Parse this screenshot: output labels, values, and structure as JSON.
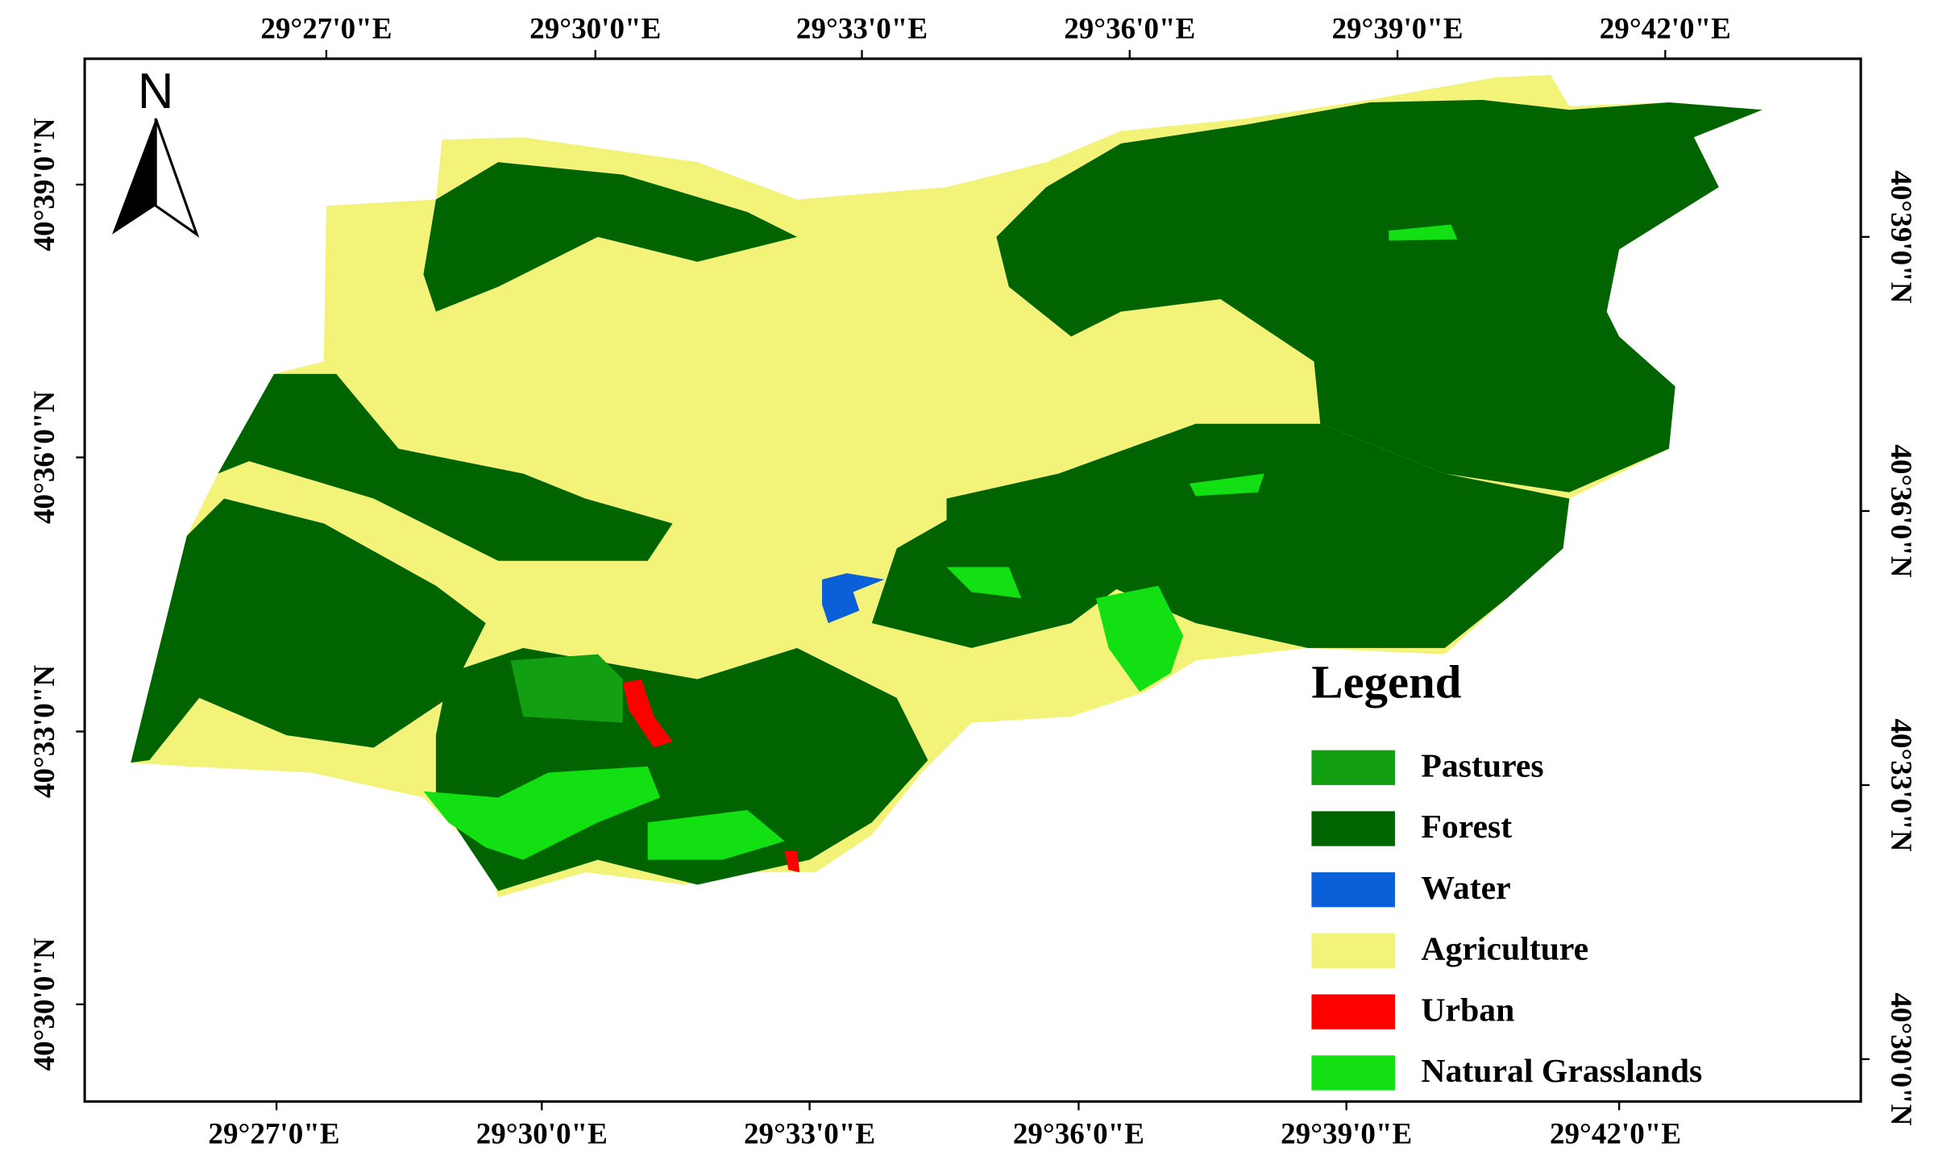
{
  "north": "N",
  "axes": {
    "top": [
      "29°27'0\"E",
      "29°30'0\"E",
      "29°33'0\"E",
      "29°36'0\"E",
      "29°39'0\"E",
      "29°42'0\"E"
    ],
    "bottom": [
      "29°27'0\"E",
      "29°30'0\"E",
      "29°33'0\"E",
      "29°36'0\"E",
      "29°39'0\"E",
      "29°42'0\"E"
    ],
    "left": [
      "40°39'0\"N",
      "40°36'0\"N",
      "40°33'0\"N",
      "40°30'0\"N"
    ],
    "right": [
      "40°39'0\"N",
      "40°36'0\"N",
      "40°33'0\"N",
      "40°30'0\"N"
    ]
  },
  "legend": {
    "title": "Legend",
    "items": [
      {
        "label": "Pastures",
        "color": "#12a012"
      },
      {
        "label": "Forest",
        "color": "#006400"
      },
      {
        "label": "Water",
        "color": "#0b5fd9"
      },
      {
        "label": "Agriculture",
        "color": "#f3f279"
      },
      {
        "label": "Urban",
        "color": "#ff0000"
      },
      {
        "label": "Natural Grasslands",
        "color": "#12e012"
      }
    ]
  }
}
